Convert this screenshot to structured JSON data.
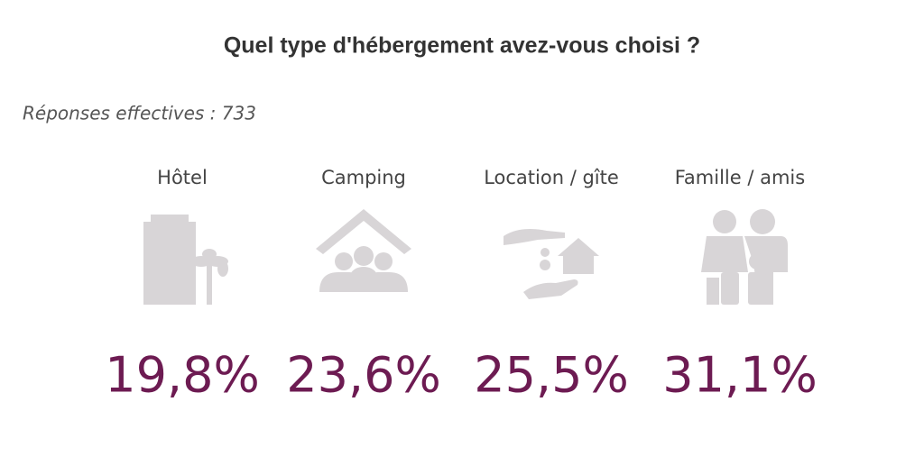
{
  "chart_data": {
    "type": "pictogram",
    "title": "Quel type d'hébergement avez-vous choisi ?",
    "subtitle": "Réponses effectives : 733",
    "categories": [
      "Hôtel",
      "Camping",
      "Location / gîte",
      "Famille / amis"
    ],
    "values": [
      19.8,
      23.6,
      25.5,
      31.1
    ],
    "value_labels": [
      "19,8%",
      "23,6%",
      "25,5%",
      "31,1%"
    ],
    "color": "#6d1b52",
    "empty_color": "#d8d5d7"
  }
}
